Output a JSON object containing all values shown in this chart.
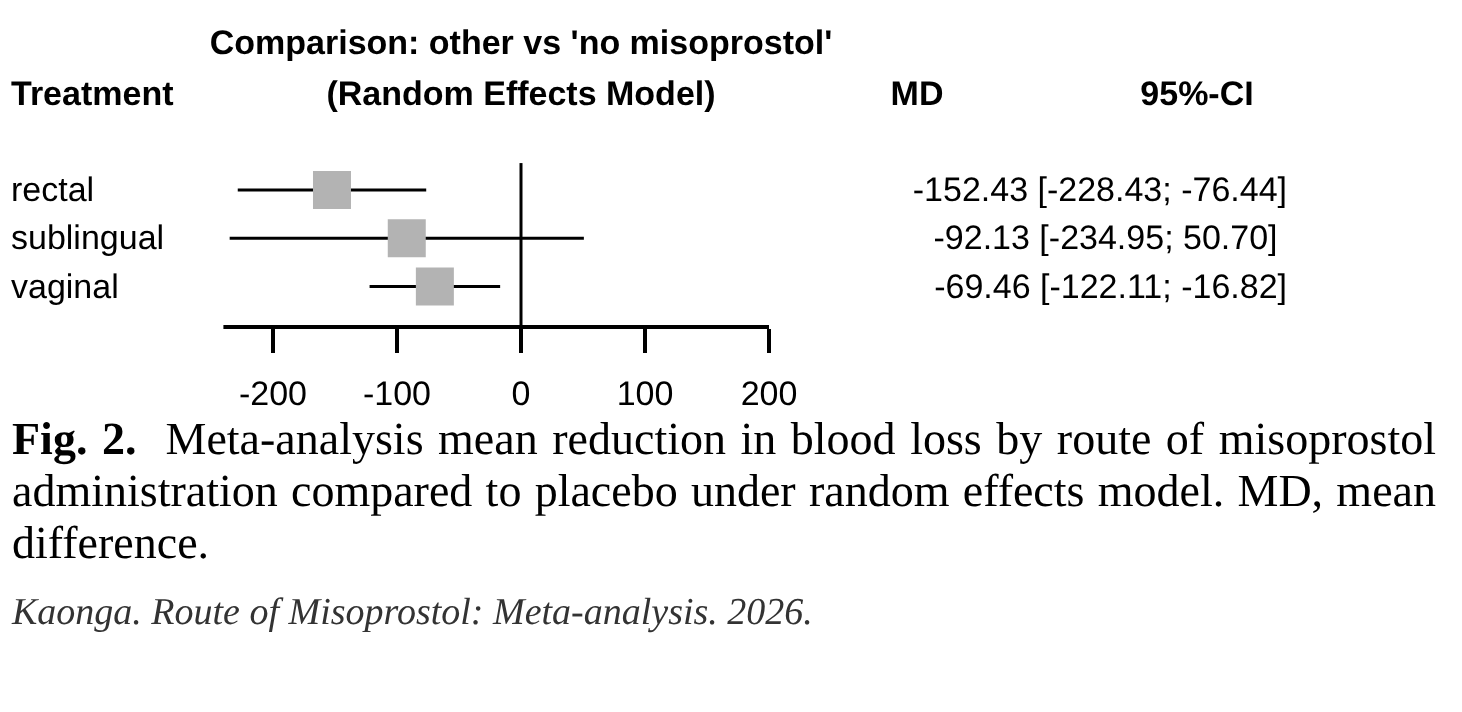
{
  "chart_data": {
    "type": "scatter",
    "orientation": "horizontal",
    "title": "Comparison: other vs 'no misoprostol'",
    "subtitle": "(Random Effects Model)",
    "categories": [
      "rectal",
      "sublingual",
      "vaginal"
    ],
    "values": [
      -152.43,
      -92.13,
      -69.46
    ],
    "errors": [
      [
        -228.43,
        -76.44
      ],
      [
        -234.95,
        50.7
      ],
      [
        -122.11,
        -16.82
      ]
    ],
    "value_labels": [
      "-152.43 [-228.43; -76.44]",
      "-92.13 [-234.95;  50.70]",
      "-69.46 [-122.11; -16.82]"
    ],
    "color": "#b3b3b3",
    "marker": "square",
    "xlim": [
      -240,
      200
    ],
    "xticks": [
      -200,
      -100,
      0,
      100,
      200
    ],
    "ref_lines": [
      {
        "axis": "x",
        "value": 0
      }
    ],
    "grid": false,
    "annotations": [
      "Treatment",
      "MD",
      "95%-CI",
      "Fig. 2.",
      "Meta-analysis mean reduction in blood loss by route of misoprostol administration compared to placebo under random effects model. MD, mean difference.",
      "Kaonga. Route of Misoprostol: Meta-analysis. 2026."
    ]
  }
}
